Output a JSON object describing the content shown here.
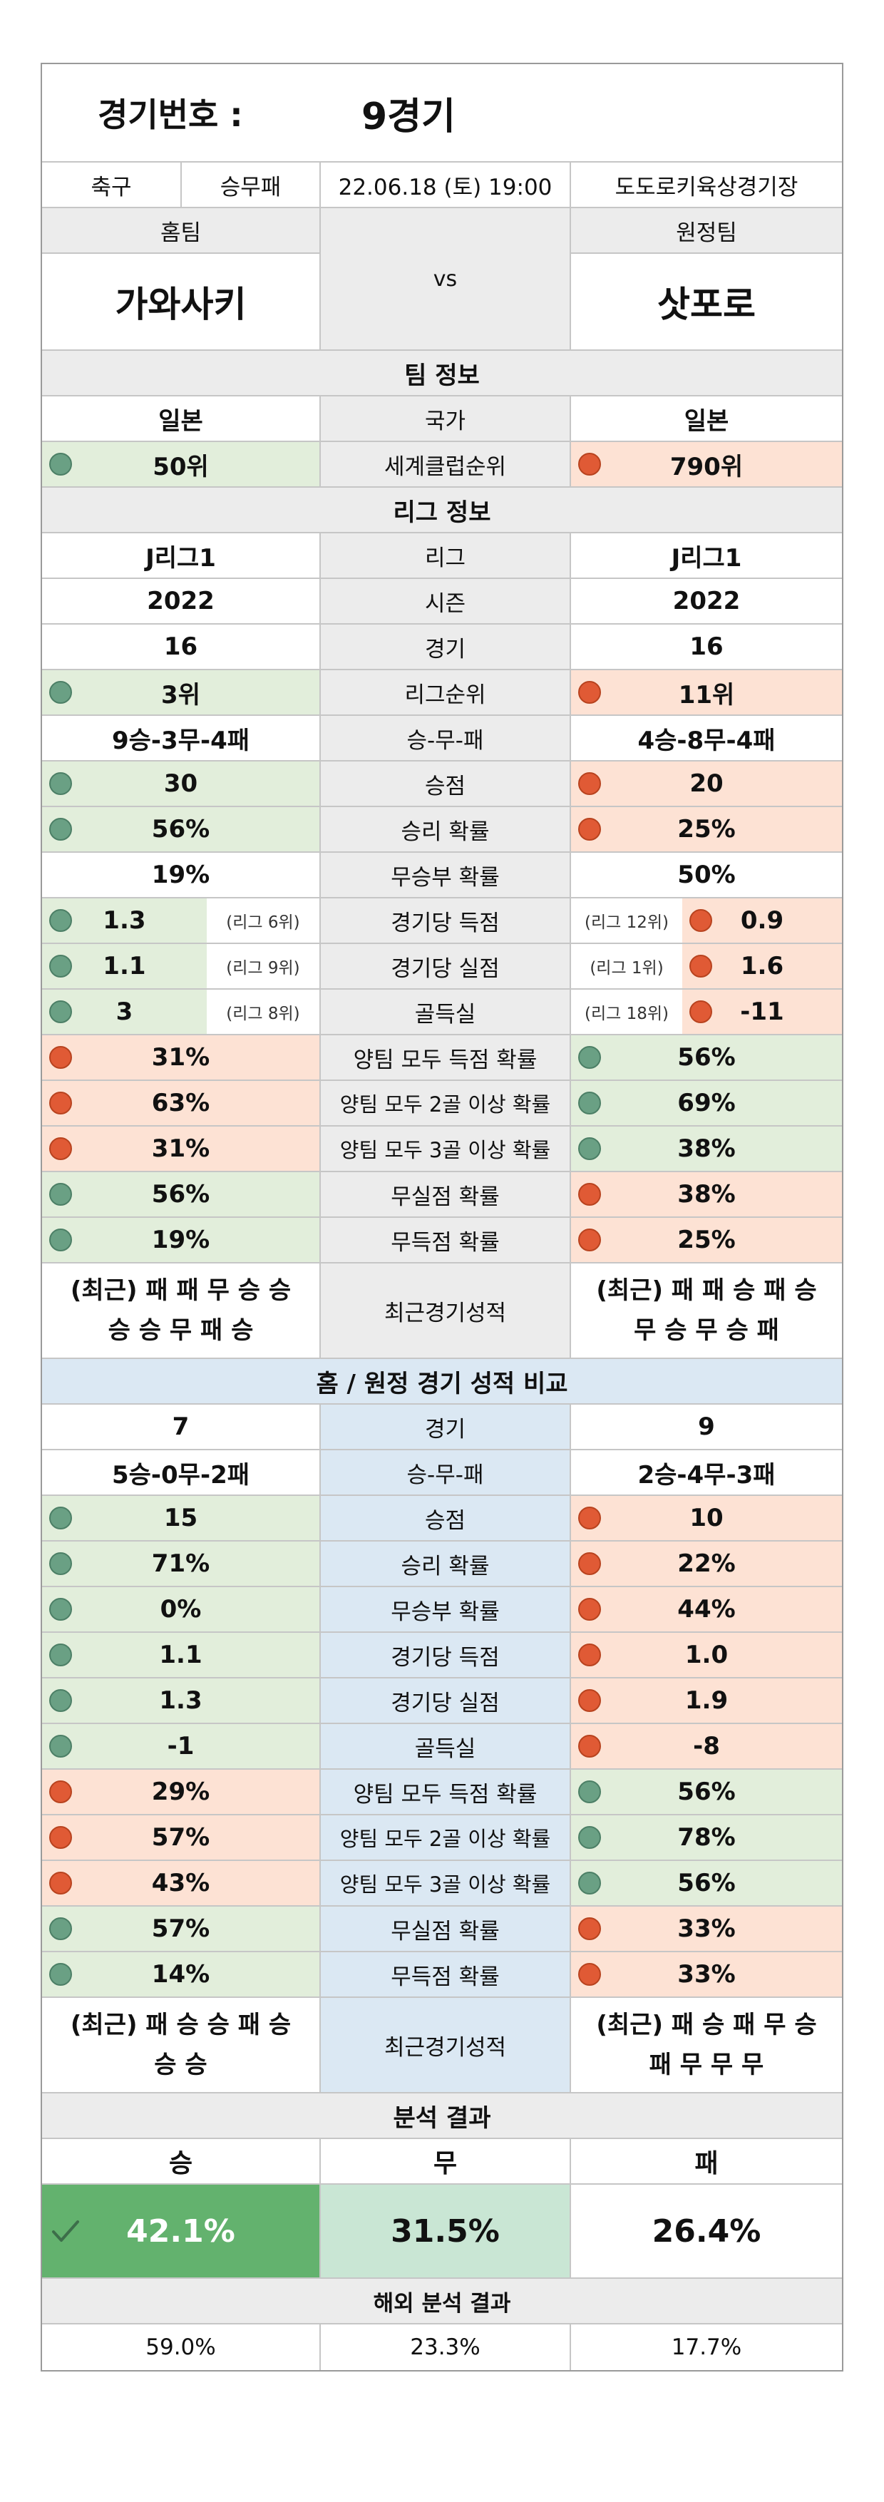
{
  "header": {
    "match_no_label": "경기번호 :",
    "match_no_value": "9경기"
  },
  "info": {
    "sport": "축구",
    "type": "승무패",
    "datetime": "22.06.18 (토) 19:00",
    "venue": "도도로키육상경기장"
  },
  "teams": {
    "home_label": "홈팀",
    "away_label": "원정팀",
    "vs": "vs",
    "home_name": "가와사키",
    "away_name": "삿포로"
  },
  "team_info": {
    "section": "팀 정보",
    "rows": [
      {
        "home": "일본",
        "label": "국가",
        "away": "일본"
      },
      {
        "home": "50위",
        "label": "세계클럽순위",
        "away": "790위"
      }
    ]
  },
  "league_info": {
    "section": "리그 정보",
    "rows": [
      {
        "home": "J리그1",
        "label": "리그",
        "away": "J리그1"
      },
      {
        "home": "2022",
        "label": "시즌",
        "away": "2022"
      },
      {
        "home": "16",
        "label": "경기",
        "away": "16"
      },
      {
        "home": "3위",
        "label": "리그순위",
        "away": "11위"
      },
      {
        "home": "9승-3무-4패",
        "label": "승-무-패",
        "away": "4승-8무-4패"
      },
      {
        "home": "30",
        "label": "승점",
        "away": "20"
      },
      {
        "home": "56%",
        "label": "승리 확률",
        "away": "25%"
      },
      {
        "home": "19%",
        "label": "무승부 확률",
        "away": "50%"
      }
    ],
    "goal_rows": [
      {
        "home": "1.3",
        "home_rank": "(리그 6위)",
        "label": "경기당 득점",
        "away_rank": "(리그 12위)",
        "away": "0.9"
      },
      {
        "home": "1.1",
        "home_rank": "(리그 9위)",
        "label": "경기당 실점",
        "away_rank": "(리그 1위)",
        "away": "1.6"
      },
      {
        "home": "3",
        "home_rank": "(리그 8위)",
        "label": "골득실",
        "away_rank": "(리그 18위)",
        "away": "-11"
      }
    ],
    "prob_rows": [
      {
        "home": "31%",
        "label": "양팀 모두 득점 확률",
        "away": "56%"
      },
      {
        "home": "63%",
        "label": "양팀 모두 2골 이상 확률",
        "away": "69%"
      },
      {
        "home": "31%",
        "label": "양팀 모두 3골 이상 확률",
        "away": "38%"
      },
      {
        "home": "56%",
        "label": "무실점 확률",
        "away": "38%"
      },
      {
        "home": "19%",
        "label": "무득점 확률",
        "away": "25%"
      }
    ],
    "recent": {
      "home_line1": "(최근) 패 패 무 승 승",
      "home_line2": "승 승 무 패 승",
      "label": "최근경기성적",
      "away_line1": "(최근) 패 패 승 패 승",
      "away_line2": "무 승 무 승 패"
    }
  },
  "home_away": {
    "section": "홈 / 원정 경기 성적 비교",
    "rows": [
      {
        "home": "7",
        "label": "경기",
        "away": "9"
      },
      {
        "home": "5승-0무-2패",
        "label": "승-무-패",
        "away": "2승-4무-3패"
      },
      {
        "home": "15",
        "label": "승점",
        "away": "10"
      },
      {
        "home": "71%",
        "label": "승리 확률",
        "away": "22%"
      },
      {
        "home": "0%",
        "label": "무승부 확률",
        "away": "44%"
      },
      {
        "home": "1.1",
        "label": "경기당 득점",
        "away": "1.0"
      },
      {
        "home": "1.3",
        "label": "경기당 실점",
        "away": "1.9"
      },
      {
        "home": "-1",
        "label": "골득실",
        "away": "-8"
      },
      {
        "home": "29%",
        "label": "양팀 모두 득점 확률",
        "away": "56%"
      },
      {
        "home": "57%",
        "label": "양팀 모두 2골 이상 확률",
        "away": "78%"
      },
      {
        "home": "43%",
        "label": "양팀 모두 3골 이상 확률",
        "away": "56%"
      },
      {
        "home": "57%",
        "label": "무실점 확률",
        "away": "33%"
      },
      {
        "home": "14%",
        "label": "무득점 확률",
        "away": "33%"
      }
    ],
    "recent": {
      "home_line1": "(최근) 패 승 승 패 승",
      "home_line2": "승 승",
      "label": "최근경기성적",
      "away_line1": "(최근) 패 승 패 무 승",
      "away_line2": "패 무 무 무"
    }
  },
  "analysis": {
    "section": "분석 결과",
    "win_label": "승",
    "draw_label": "무",
    "lose_label": "패",
    "win": "42.1%",
    "draw": "31.5%",
    "lose": "26.4%",
    "overseas_label": "해외 분석 결과",
    "ov_win": "59.0%",
    "ov_draw": "23.3%",
    "ov_lose": "17.7%"
  },
  "colors": {
    "good": "#e2eedb",
    "bad": "#fde2d4",
    "good_dot": "#6aa084",
    "bad_dot": "#e05a35",
    "win_highlight": "#63b26e",
    "neutral_header": "#ececec",
    "compare_center": "#dbe8f3"
  }
}
